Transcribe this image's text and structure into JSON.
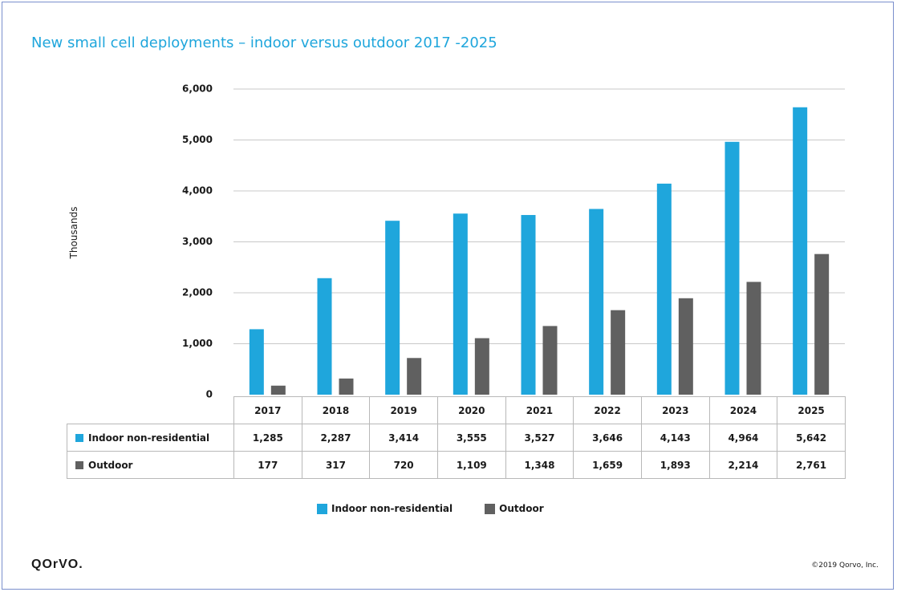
{
  "chart_data": {
    "type": "bar",
    "title": "New small cell deployments – indoor versus outdoor 2017 -2025",
    "ylabel": "Thousands",
    "xlabel": "",
    "ylim": [
      0,
      6000
    ],
    "yticks": [
      "0",
      "1,000",
      "2,000",
      "3,000",
      "4,000",
      "5,000",
      "6,000"
    ],
    "grid": true,
    "legend_position": "bottom",
    "categories": [
      "2017",
      "2018",
      "2019",
      "2020",
      "2021",
      "2022",
      "2023",
      "2024",
      "2025"
    ],
    "series": [
      {
        "name": "Indoor non-residential",
        "color": "#1fa6dc",
        "values": [
          1285,
          2287,
          3414,
          3555,
          3527,
          3646,
          4143,
          4964,
          5642
        ],
        "labels": [
          "1,285",
          "2,287",
          "3,414",
          "3,555",
          "3,527",
          "3,646",
          "4,143",
          "4,964",
          "5,642"
        ]
      },
      {
        "name": "Outdoor",
        "color": "#606060",
        "values": [
          177,
          317,
          720,
          1109,
          1348,
          1659,
          1893,
          2214,
          2761
        ],
        "labels": [
          "177",
          "317",
          "720",
          "1,109",
          "1,348",
          "1,659",
          "1,893",
          "2,214",
          "2,761"
        ]
      }
    ]
  },
  "footer": {
    "logo_text": "QOrVO.",
    "copyright": "©2019 Qorvo, Inc."
  }
}
